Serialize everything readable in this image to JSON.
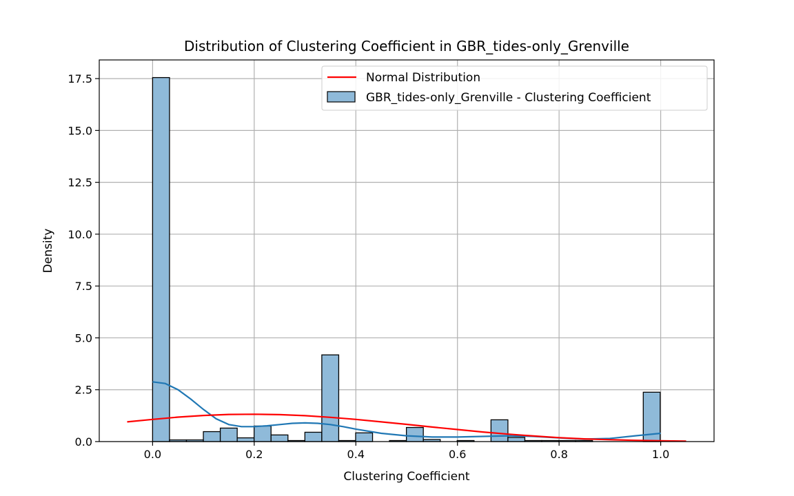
{
  "chart_data": {
    "type": "bar",
    "title": "Distribution of Clustering Coefficient in GBR_tides-only_Grenville",
    "xlabel": "Clustering Coefficient",
    "ylabel": "Density",
    "xlim": [
      -0.105,
      1.105
    ],
    "ylim": [
      0,
      18.4
    ],
    "xticks": [
      0.0,
      0.2,
      0.4,
      0.6,
      0.8,
      1.0
    ],
    "xtick_labels": [
      "0.0",
      "0.2",
      "0.4",
      "0.6",
      "0.8",
      "1.0"
    ],
    "yticks": [
      0.0,
      2.5,
      5.0,
      7.5,
      10.0,
      12.5,
      15.0,
      17.5
    ],
    "ytick_labels": [
      "0.0",
      "2.5",
      "5.0",
      "7.5",
      "10.0",
      "12.5",
      "15.0",
      "17.5"
    ],
    "grid": true,
    "legend_position": "top-right",
    "histogram": {
      "name": "GBR_tides-only_Grenville - Clustering Coefficient",
      "bin_start": 0.0,
      "bin_width": 0.0333,
      "values": [
        17.55,
        0.08,
        0.08,
        0.48,
        0.65,
        0.18,
        0.75,
        0.32,
        0.05,
        0.45,
        4.18,
        0.05,
        0.42,
        0.0,
        0.05,
        0.68,
        0.1,
        0.0,
        0.05,
        0.0,
        1.05,
        0.2,
        0.05,
        0.05,
        0.05,
        0.05,
        0.0,
        0.0,
        0.0,
        2.38
      ]
    },
    "kde": {
      "x": [
        0.0,
        0.025,
        0.05,
        0.075,
        0.1,
        0.125,
        0.15,
        0.175,
        0.2,
        0.225,
        0.25,
        0.275,
        0.3,
        0.325,
        0.35,
        0.375,
        0.4,
        0.45,
        0.5,
        0.55,
        0.6,
        0.65,
        0.7,
        0.75,
        0.8,
        0.85,
        0.9,
        0.95,
        1.0
      ],
      "y": [
        2.88,
        2.8,
        2.5,
        2.05,
        1.55,
        1.1,
        0.82,
        0.72,
        0.72,
        0.76,
        0.82,
        0.88,
        0.9,
        0.88,
        0.82,
        0.72,
        0.6,
        0.4,
        0.28,
        0.22,
        0.22,
        0.25,
        0.28,
        0.25,
        0.18,
        0.12,
        0.15,
        0.28,
        0.4
      ]
    },
    "normal": {
      "name": "Normal Distribution",
      "x": [
        -0.05,
        0.0,
        0.05,
        0.1,
        0.15,
        0.2,
        0.25,
        0.3,
        0.35,
        0.4,
        0.45,
        0.5,
        0.55,
        0.6,
        0.65,
        0.7,
        0.75,
        0.8,
        0.85,
        0.9,
        0.95,
        1.0,
        1.05
      ],
      "y": [
        0.95,
        1.07,
        1.18,
        1.26,
        1.31,
        1.32,
        1.3,
        1.25,
        1.17,
        1.07,
        0.95,
        0.83,
        0.7,
        0.58,
        0.46,
        0.36,
        0.27,
        0.19,
        0.13,
        0.09,
        0.06,
        0.04,
        0.02
      ]
    },
    "colors": {
      "bar_fill": "#8fbad9",
      "bar_edge": "#000000",
      "kde_line": "#1f77b4",
      "normal_line": "#ff0000",
      "grid": "#b0b0b0"
    }
  }
}
